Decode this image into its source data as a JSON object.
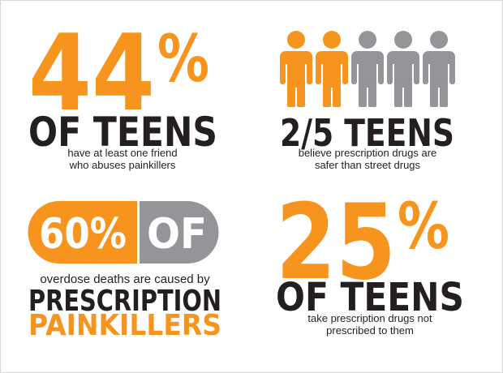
{
  "panels": [
    {
      "stat": "44",
      "unit": "%",
      "headline": "OF TEENS",
      "caption": [
        "have at least one friend",
        "who abuses painkillers"
      ]
    },
    {
      "headline": "2/5 TEENS",
      "caption": [
        "believe prescription drugs are",
        "safer than street drugs"
      ]
    },
    {
      "pill": [
        "60%",
        "OF"
      ],
      "caption": [
        "overdose deaths are caused by"
      ],
      "headline": [
        "PRESCRIPTION",
        "PAINKILLERS"
      ]
    },
    {
      "stat": "25",
      "unit": "%",
      "headline": "OF TEENS",
      "caption": [
        "take prescription drugs not",
        "prescribed to them"
      ]
    }
  ]
}
